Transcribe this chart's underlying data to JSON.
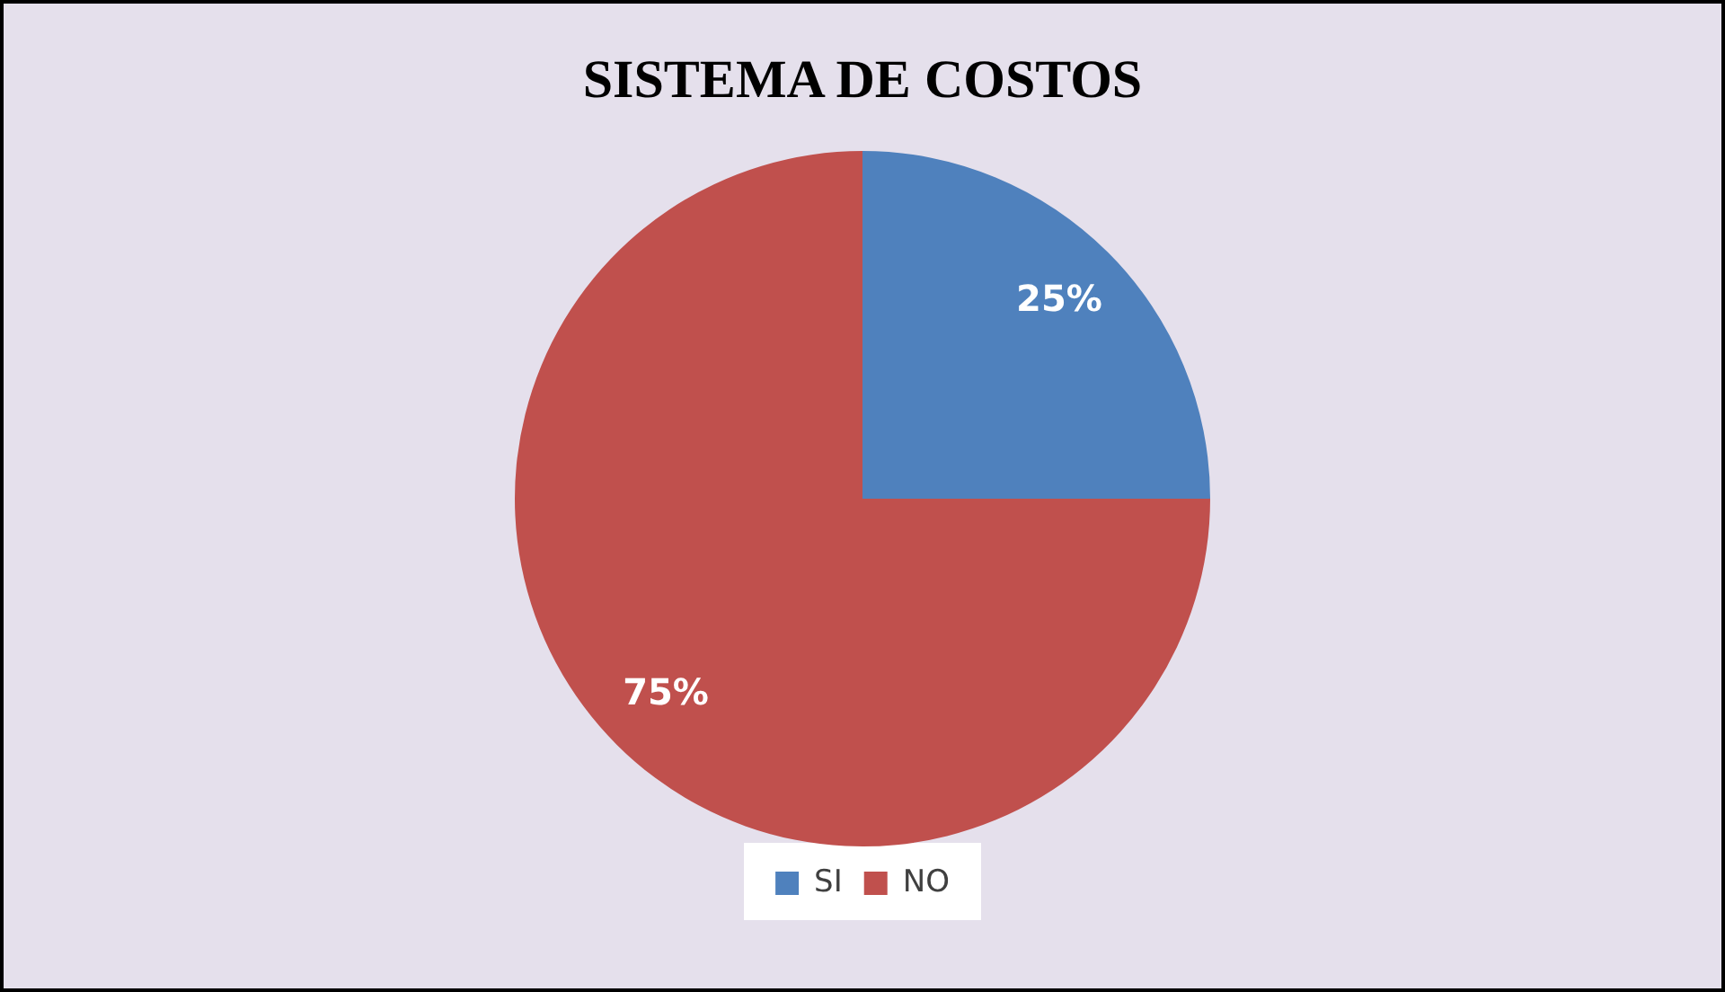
{
  "chart_data": {
    "type": "pie",
    "title": "SISTEMA DE COSTOS",
    "categories": [
      "SI",
      "NO"
    ],
    "values": [
      25,
      75
    ],
    "colors": [
      "#4f81bd",
      "#c0504d"
    ],
    "value_labels": [
      "25%",
      "75%"
    ],
    "legend": "bottom"
  }
}
